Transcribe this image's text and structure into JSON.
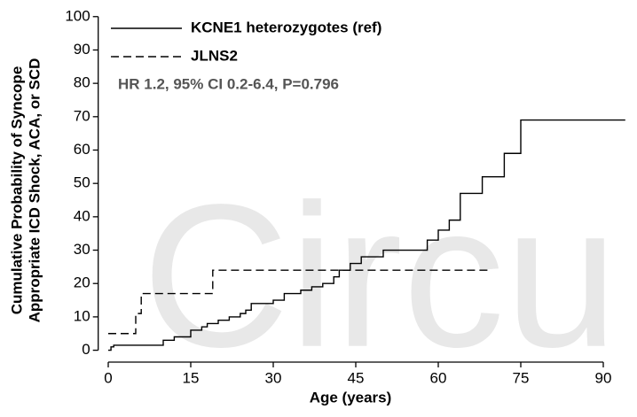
{
  "chart_data": {
    "type": "step",
    "watermark": "Circu",
    "ylabel": [
      "Cumulative Probability of Syncope",
      "Appropriate ICD Shock, ACA, or SCD"
    ],
    "xlabel": "Age (years)",
    "annotation": "HR 1.2, 95% CI 0.2-6.4, P=0.796",
    "xlim": [
      -1.5,
      95
    ],
    "ylim": [
      -2.5,
      101
    ],
    "xticks": [
      0,
      15,
      30,
      45,
      60,
      75,
      90
    ],
    "yticks": [
      0,
      10,
      20,
      30,
      40,
      50,
      60,
      70,
      80,
      90,
      100
    ],
    "series": [
      {
        "name": "KCNE1 heterozygotes (ref)",
        "color": "#000000",
        "dash": "solid",
        "x": [
          0,
          0.5,
          1,
          10,
          12,
          15,
          17,
          18,
          20,
          22,
          24,
          25,
          26,
          30,
          32,
          35,
          37,
          39,
          41,
          42,
          44,
          46,
          50,
          57,
          58,
          60,
          62,
          64,
          68,
          72,
          75,
          94
        ],
        "values": [
          0,
          1,
          1.5,
          3,
          4,
          6,
          7,
          8,
          9,
          10,
          11,
          12,
          14,
          15,
          17,
          18,
          19,
          20,
          22,
          24,
          26,
          28,
          30,
          30,
          33,
          36,
          39,
          47,
          52,
          59,
          69,
          69
        ]
      },
      {
        "name": "JLNS2",
        "color": "#000000",
        "dash": "dashed",
        "x": [
          0,
          4,
          5,
          6,
          19,
          69
        ],
        "values": [
          5,
          5,
          11,
          17,
          24,
          24
        ]
      }
    ]
  }
}
